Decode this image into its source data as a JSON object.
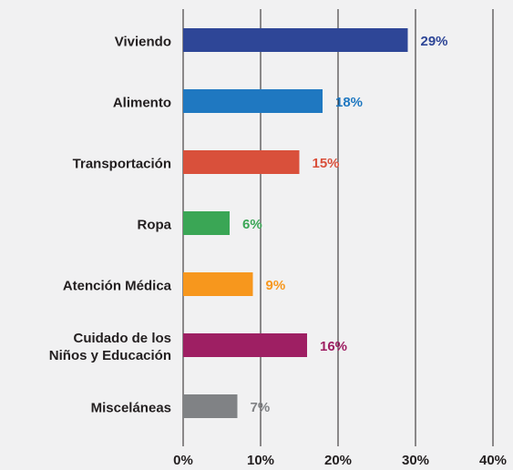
{
  "chart_data": {
    "type": "barh",
    "categories": [
      "Viviendo",
      "Alimento",
      "Transportación",
      "Ropa",
      "Atención Médica",
      "Cuidado de los\nNiños y Educación",
      "Misceláneas"
    ],
    "values": [
      29,
      18,
      15,
      6,
      9,
      16,
      7
    ],
    "value_labels": [
      "29%",
      "18%",
      "15%",
      "6%",
      "9%",
      "16%",
      "7%"
    ],
    "colors": [
      "#2e4697",
      "#1f78c1",
      "#d9503b",
      "#3aa655",
      "#f7971d",
      "#9e1f63",
      "#808285"
    ],
    "xlim": [
      0,
      40
    ],
    "xticks": [
      {
        "value": 0,
        "label": "0%"
      },
      {
        "value": 10,
        "label": "10%"
      },
      {
        "value": 20,
        "label": "20%"
      },
      {
        "value": 30,
        "label": "30%"
      },
      {
        "value": 40,
        "label": "40%"
      }
    ],
    "grid": true
  }
}
